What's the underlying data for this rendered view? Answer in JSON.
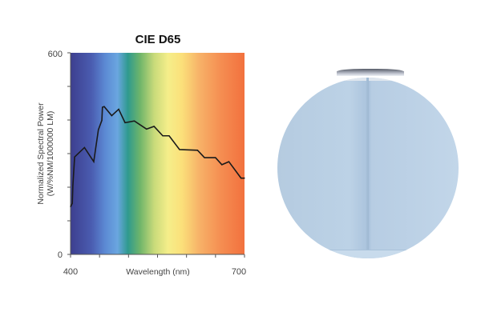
{
  "chart_data": {
    "type": "line",
    "title": "CIE D65",
    "xlabel": "Wavelength (nm)",
    "ylabel": "Normalized Spectral Power",
    "ylabel2": "(W/%NM/1000000 LM)",
    "xlim": [
      400,
      700
    ],
    "ylim": [
      0,
      600
    ],
    "x_tick_labels": [
      "400",
      "700"
    ],
    "y_tick_labels": [
      "0",
      "600"
    ],
    "x_ticks": [
      400,
      450,
      500,
      550,
      600,
      650,
      700
    ],
    "y_ticks": [
      0,
      100,
      200,
      300,
      400,
      500,
      600
    ],
    "grid": false,
    "background": "visible spectrum gradient (violet to red)",
    "line_color": "#1a1a1a",
    "x": [
      400,
      403,
      404,
      407,
      424,
      440,
      448,
      454,
      455,
      458,
      471,
      483,
      494,
      510,
      531,
      544,
      559,
      570,
      588,
      619,
      631,
      650,
      661,
      673,
      694,
      700
    ],
    "y": [
      142,
      152,
      205,
      290,
      318,
      276,
      371,
      399,
      438,
      440,
      413,
      432,
      392,
      397,
      373,
      381,
      353,
      353,
      312,
      310,
      288,
      288,
      267,
      276,
      227,
      227
    ]
  },
  "photo": {
    "subject": "room-corner-circle",
    "wall_color": "#b8cee4"
  }
}
